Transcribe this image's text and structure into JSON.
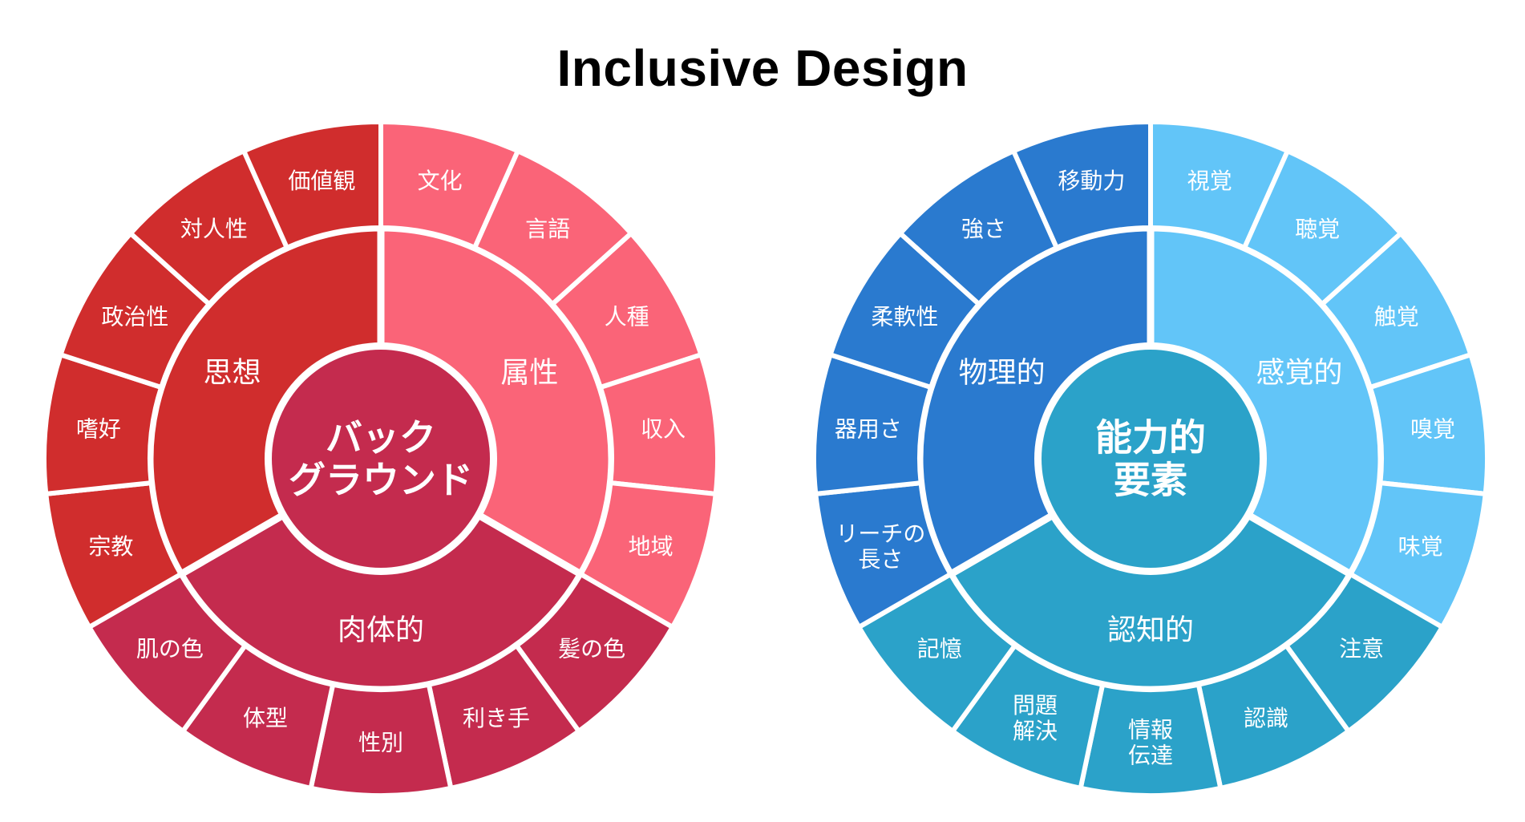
{
  "title": "Inclusive Design",
  "wheels": [
    {
      "id": "background",
      "center_label": [
        "バック",
        "グラウンド"
      ],
      "center_color": "#C42B4E",
      "groups": [
        {
          "label": "属性",
          "color": "#FA6478",
          "items": [
            [
              "文化"
            ],
            [
              "言語"
            ],
            [
              "人種"
            ],
            [
              "収入"
            ],
            [
              "地域"
            ]
          ]
        },
        {
          "label": "肉体的",
          "color": "#C42B4E",
          "items": [
            [
              "髪の色"
            ],
            [
              "利き手"
            ],
            [
              "性別"
            ],
            [
              "体型"
            ],
            [
              "肌の色"
            ]
          ]
        },
        {
          "label": "思想",
          "color": "#D02D2D",
          "items": [
            [
              "宗教"
            ],
            [
              "嗜好"
            ],
            [
              "政治性"
            ],
            [
              "対人性"
            ],
            [
              "価値観"
            ]
          ]
        }
      ]
    },
    {
      "id": "ability",
      "center_label": [
        "能力的",
        "要素"
      ],
      "center_color": "#2BA2C9",
      "groups": [
        {
          "label": "感覚的",
          "color": "#62C5F8",
          "items": [
            [
              "視覚"
            ],
            [
              "聴覚"
            ],
            [
              "触覚"
            ],
            [
              "嗅覚"
            ],
            [
              "味覚"
            ]
          ]
        },
        {
          "label": "認知的",
          "color": "#2BA2C9",
          "items": [
            [
              "注意"
            ],
            [
              "認識"
            ],
            [
              "情報",
              "伝達"
            ],
            [
              "問題",
              "解決"
            ],
            [
              "記憶"
            ]
          ]
        },
        {
          "label": "物理的",
          "color": "#2A7ACF",
          "items": [
            [
              "リーチの",
              "長さ"
            ],
            [
              "器用さ"
            ],
            [
              "柔軟性"
            ],
            [
              "強さ"
            ],
            [
              "移動力"
            ]
          ]
        }
      ]
    }
  ]
}
